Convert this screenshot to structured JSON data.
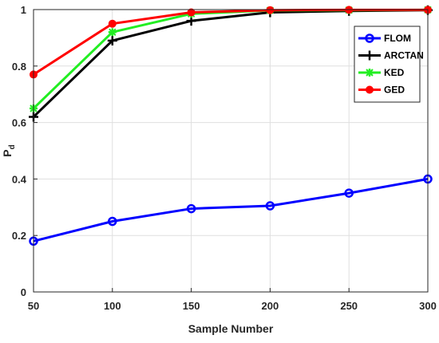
{
  "chart_data": {
    "type": "line",
    "title": "",
    "xlabel": "Sample Number",
    "ylabel": "P",
    "ylabel_subscript": "d",
    "x": [
      50,
      100,
      150,
      200,
      250,
      300
    ],
    "xlim": [
      50,
      300
    ],
    "ylim": [
      0,
      1
    ],
    "xticks": [
      50,
      100,
      150,
      200,
      250,
      300
    ],
    "yticks": [
      0,
      0.2,
      0.4,
      0.6,
      0.8,
      1
    ],
    "ytick_labels": [
      "0",
      "0.2",
      "0.4",
      "0.6",
      "0.8",
      "1"
    ],
    "grid": true,
    "legend_position": "top-right",
    "series": [
      {
        "name": "FLOM",
        "color": "#0000ff",
        "marker": "circle",
        "values": [
          0.18,
          0.25,
          0.295,
          0.305,
          0.35,
          0.4
        ]
      },
      {
        "name": "ARCTAN",
        "color": "#000000",
        "marker": "plus",
        "values": [
          0.62,
          0.89,
          0.96,
          0.99,
          0.995,
          0.998
        ]
      },
      {
        "name": "KED",
        "color": "#22ee22",
        "marker": "asterisk",
        "values": [
          0.65,
          0.92,
          0.985,
          0.997,
          0.998,
          0.999
        ]
      },
      {
        "name": "GED",
        "color": "#ff0000",
        "marker": "dot",
        "values": [
          0.77,
          0.95,
          0.99,
          0.998,
          0.999,
          0.999
        ]
      }
    ]
  }
}
